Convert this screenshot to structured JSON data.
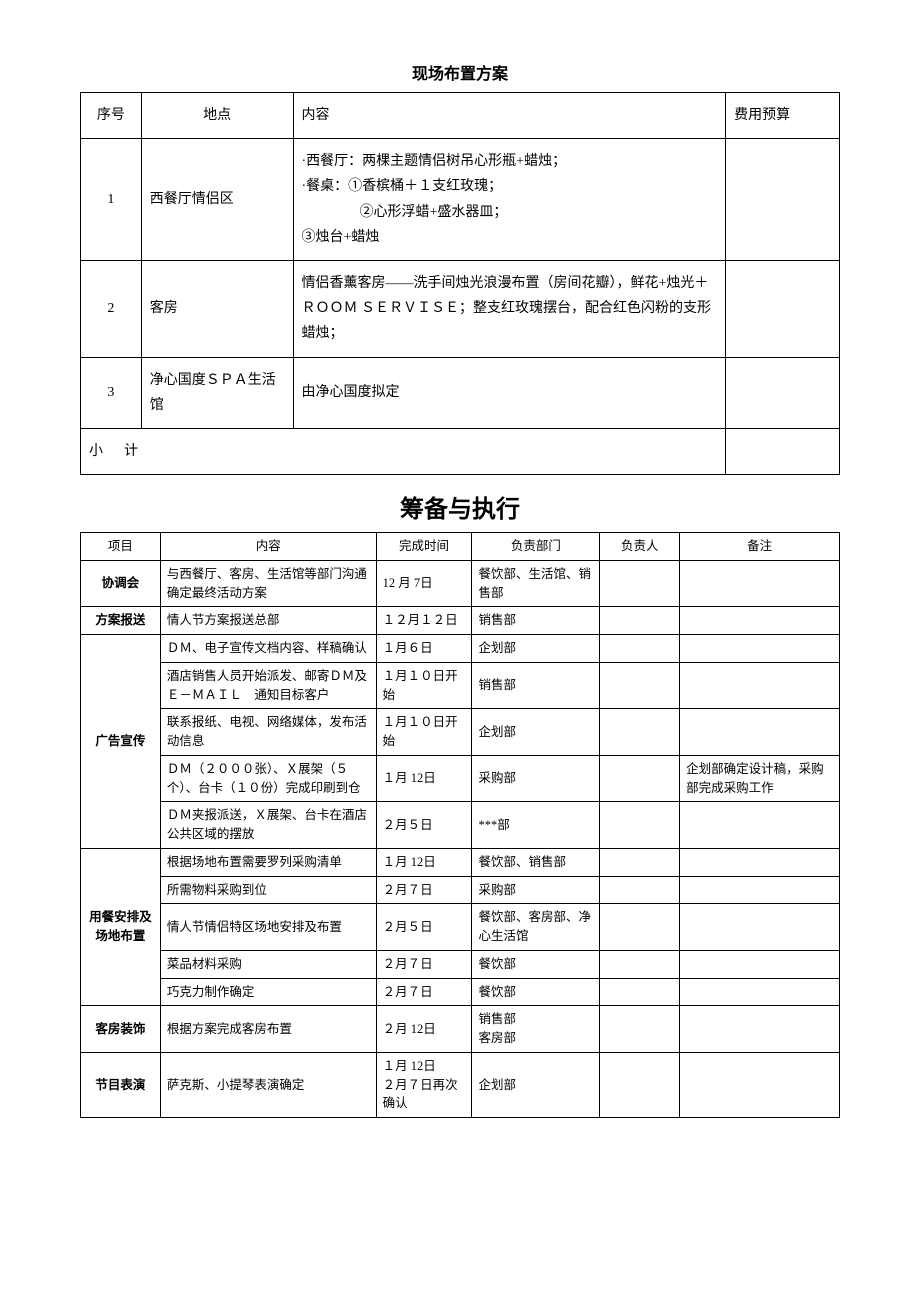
{
  "table1": {
    "title": "现场布置方案",
    "headers": {
      "seq": "序号",
      "location": "地点",
      "content": "内容",
      "cost": "费用预算"
    },
    "rows": [
      {
        "seq": "1",
        "location": "西餐厅情侣区",
        "content_line1": "·西餐厅：两棵主题情侣树吊心形瓶+蜡烛；",
        "content_line2": "·餐桌：①香槟桶＋１支红玫瑰；",
        "content_line3": "②心形浮蜡+盛水器皿；",
        "content_line4": "③烛台+蜡烛",
        "cost": ""
      },
      {
        "seq": "2",
        "location": "客房",
        "content": "情侣香薰客房——洗手间烛光浪漫布置（房间花瓣），鲜花+烛光＋ＲＯＯＭ ＳＥＲＶＩＳＥ；整支红玫瑰摆台，配合红色闪粉的支形蜡烛；",
        "cost": ""
      },
      {
        "seq": "3",
        "location": "净心国度ＳＰＡ生活馆",
        "content": "由净心国度拟定",
        "cost": ""
      }
    ],
    "subtotal_label": "小计",
    "subtotal_value": ""
  },
  "table2": {
    "title": "筹备与执行",
    "headers": {
      "project": "项目",
      "content": "内容",
      "time": "完成时间",
      "dept": "负责部门",
      "person": "负责人",
      "note": "备注"
    },
    "sections": [
      {
        "project": "协调会",
        "rows": [
          {
            "content": "与西餐厅、客房、生活馆等部门沟通确定最终活动方案",
            "time": "12 月 7日",
            "dept": "餐饮部、生活馆、销售部",
            "person": "",
            "note": ""
          }
        ]
      },
      {
        "project": "方案报送",
        "rows": [
          {
            "content": "情人节方案报送总部",
            "time": "１２月１２日",
            "dept": "销售部",
            "person": "",
            "note": ""
          }
        ]
      },
      {
        "project": "广告宣传",
        "rows": [
          {
            "content": "ＤＭ、电子宣传文档内容、样稿确认",
            "time": "１月６日",
            "dept": "企划部",
            "person": "",
            "note": ""
          },
          {
            "content": "酒店销售人员开始派发、邮寄ＤＭ及Ｅ－ＭＡＩＬ　通知目标客户",
            "time": "１月１０日开始",
            "dept": "销售部",
            "person": "",
            "note": ""
          },
          {
            "content": "联系报纸、电视、网络媒体，发布活动信息",
            "time": "１月１０日开始",
            "dept": "企划部",
            "person": "",
            "note": ""
          },
          {
            "content": "ＤＭ（２０００张）、Ｘ展架（５个）、台卡（１０份）完成印刷到仓",
            "time": "１月 12日",
            "dept": "采购部",
            "person": "",
            "note": "企划部确定设计稿，采购部完成采购工作"
          },
          {
            "content": "ＤＭ夹报派送，Ｘ展架、台卡在酒店公共区域的摆放",
            "time": "２月５日",
            "dept": "***部",
            "person": "",
            "note": ""
          }
        ]
      },
      {
        "project": "用餐安排及场地布置",
        "rows": [
          {
            "content": "根据场地布置需要罗列采购清单",
            "time": "１月 12日",
            "dept": "餐饮部、销售部",
            "person": "",
            "note": ""
          },
          {
            "content": "所需物料采购到位",
            "time": "２月７日",
            "dept": "采购部",
            "person": "",
            "note": ""
          },
          {
            "content": "情人节情侣特区场地安排及布置",
            "time": "２月５日",
            "dept": "餐饮部、客房部、净心生活馆",
            "person": "",
            "note": ""
          },
          {
            "content": "菜品材料采购",
            "time": "２月７日",
            "dept": "餐饮部",
            "person": "",
            "note": ""
          },
          {
            "content": "巧克力制作确定",
            "time": "２月７日",
            "dept": "餐饮部",
            "person": "",
            "note": ""
          }
        ]
      },
      {
        "project": "客房装饰",
        "rows": [
          {
            "content": "根据方案完成客房布置",
            "time": "２月 12日",
            "dept": "销售部\n客房部",
            "person": "",
            "note": ""
          }
        ]
      },
      {
        "project": "节目表演",
        "rows": [
          {
            "content": "萨克斯、小提琴表演确定",
            "time": "１月 12日\n２月７日再次确认",
            "dept": "企划部",
            "person": "",
            "note": ""
          }
        ]
      }
    ]
  }
}
